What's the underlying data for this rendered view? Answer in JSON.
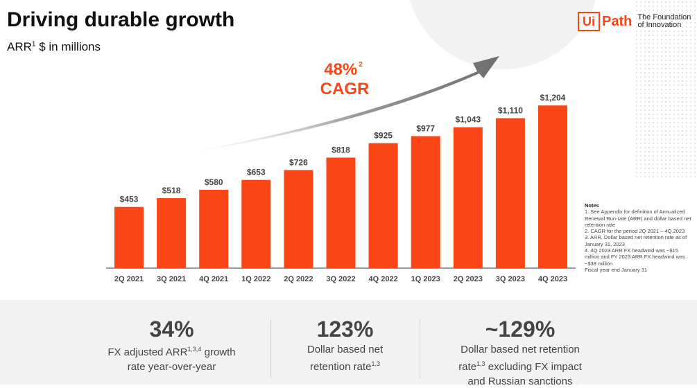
{
  "header": {
    "title": "Driving durable growth",
    "subtitle_prefix": "ARR",
    "subtitle_sup": "1",
    "subtitle_rest": " $ in millions"
  },
  "logo": {
    "mark": "Ui",
    "word": "Path",
    "tagline_1": "The Foundation",
    "tagline_2": "of Innovation"
  },
  "cagr": {
    "value": "48%",
    "sup": "2",
    "label": "CAGR"
  },
  "colors": {
    "bar": "#fa4616",
    "accent": "#fa4616",
    "arrow": "#6e6e6e",
    "text": "#444444"
  },
  "chart_data": {
    "type": "bar",
    "categories": [
      "2Q 2021",
      "3Q 2021",
      "4Q 2021",
      "1Q 2022",
      "2Q 2022",
      "3Q 2022",
      "4Q 2022",
      "1Q 2023",
      "2Q 2023",
      "3Q 2023",
      "4Q 2023"
    ],
    "values": [
      453,
      518,
      580,
      653,
      726,
      818,
      925,
      977,
      1043,
      1110,
      1204
    ],
    "value_labels": [
      "$453",
      "$518",
      "$580",
      "$653",
      "$726",
      "$818",
      "$925",
      "$977",
      "$1,043",
      "$1,110",
      "$1,204"
    ],
    "ylim": [
      0,
      1300
    ],
    "grid": false,
    "legend": "none"
  },
  "notes": {
    "heading": "Notes",
    "lines": [
      "1. See Appendix for definition of Annualized Renewal Run-rate (ARR) and dollar based net retention rate",
      "2. CAGR for the period 2Q 2021 – 4Q 2023",
      "3. ARR, Dollar based net retention rate as of January 31, 2023",
      "4. 4Q 2023 ARR FX headwind was ~$15 million and FY 2023 ARR FX headwind was ~$38 million",
      "Fiscal year end January 31"
    ]
  },
  "stats": [
    {
      "value": "34%",
      "l1a": "FX adjusted ARR",
      "l1sup": "1,3,4",
      "l1b": " growth",
      "l2a": "rate year-over-year",
      "l2sup": "",
      "l2b": "",
      "l3": ""
    },
    {
      "value": "123%",
      "l1a": "Dollar based net",
      "l1sup": "",
      "l1b": "",
      "l2a": "retention rate",
      "l2sup": "1,3",
      "l2b": "",
      "l3": ""
    },
    {
      "value": "~129%",
      "l1a": "Dollar based net retention",
      "l1sup": "",
      "l1b": "",
      "l2a": "rate",
      "l2sup": "1,3",
      "l2b": " excluding FX impact",
      "l3": "and Russian sanctions"
    }
  ]
}
